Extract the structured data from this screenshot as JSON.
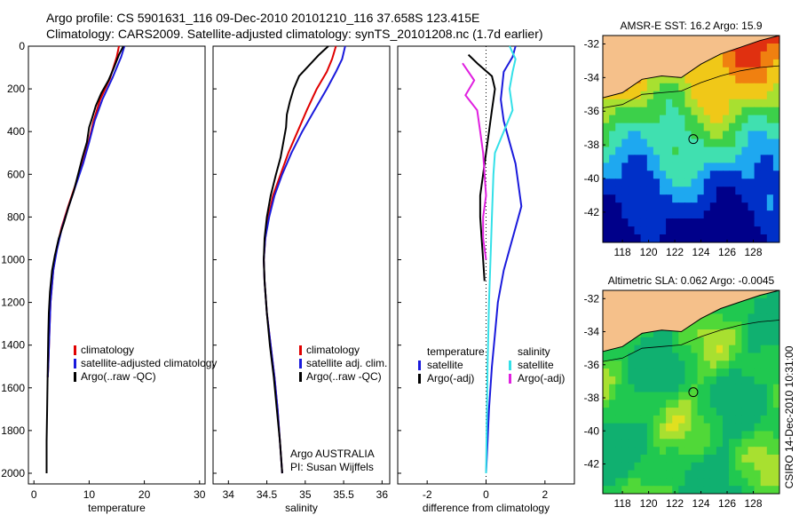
{
  "header": {
    "line1": "Argo profile: CS 5901631_116 09-Dec-2010 20101210_116 37.658S 123.415E",
    "line2": "Climatology: CARS2009. Satellite-adjusted climatology: synTS_20101208.nc (1.7d earlier)"
  },
  "credit": "CSIRO 14-Dec-2010 10:31:00",
  "colors": {
    "climatology": "#e00000",
    "satellite": "#1a1adc",
    "argo": "#000000",
    "cyan": "#33e0e8",
    "magenta": "#e020e0",
    "land": "#f5c08a"
  },
  "chart_data": [
    {
      "type": "line",
      "xlabel": "temperature",
      "ylabel": "",
      "xlim": [
        -1,
        31
      ],
      "ylim": [
        2050,
        0
      ],
      "xticks": [
        0,
        10,
        20,
        30
      ],
      "yticks": [
        0,
        200,
        400,
        600,
        800,
        1000,
        1200,
        1400,
        1600,
        1800,
        2000
      ],
      "legend": [
        "climatology",
        "satellite-adjusted climatology",
        "Argo(..raw -QC)"
      ],
      "series": [
        {
          "name": "climatology",
          "color": "#e00000",
          "points": [
            [
              15.4,
              0
            ],
            [
              15.0,
              50
            ],
            [
              13.8,
              150
            ],
            [
              12.0,
              250
            ],
            [
              10.8,
              350
            ],
            [
              9.9,
              450
            ],
            [
              8.8,
              550
            ],
            [
              7.5,
              650
            ],
            [
              6.2,
              750
            ],
            [
              5.0,
              850
            ],
            [
              4.1,
              950
            ],
            [
              3.5,
              1050
            ],
            [
              3.0,
              1200
            ],
            [
              2.8,
              1350
            ],
            [
              2.6,
              1500
            ],
            [
              2.5,
              1550
            ]
          ]
        },
        {
          "name": "satellite-adjusted climatology",
          "color": "#1a1adc",
          "points": [
            [
              16.4,
              0
            ],
            [
              15.8,
              50
            ],
            [
              14.2,
              150
            ],
            [
              12.4,
              250
            ],
            [
              11.0,
              350
            ],
            [
              10.0,
              450
            ],
            [
              8.9,
              550
            ],
            [
              7.6,
              650
            ],
            [
              6.3,
              750
            ],
            [
              5.1,
              850
            ],
            [
              4.2,
              950
            ],
            [
              3.5,
              1050
            ],
            [
              3.0,
              1200
            ],
            [
              2.8,
              1350
            ],
            [
              2.6,
              1500
            ],
            [
              2.5,
              1550
            ]
          ]
        },
        {
          "name": "Argo(..raw -QC)",
          "color": "#000000",
          "points": [
            [
              16.2,
              0
            ],
            [
              15.4,
              40
            ],
            [
              14.5,
              100
            ],
            [
              13.5,
              160
            ],
            [
              12.2,
              220
            ],
            [
              11.2,
              280
            ],
            [
              10.5,
              340
            ],
            [
              10.0,
              380
            ],
            [
              9.6,
              450
            ],
            [
              8.8,
              520
            ],
            [
              8.0,
              600
            ],
            [
              7.2,
              680
            ],
            [
              6.3,
              750
            ],
            [
              5.4,
              830
            ],
            [
              4.5,
              900
            ],
            [
              3.8,
              980
            ],
            [
              3.3,
              1050
            ],
            [
              2.9,
              1150
            ],
            [
              2.7,
              1250
            ],
            [
              2.6,
              1350
            ],
            [
              2.5,
              1500
            ],
            [
              2.4,
              1700
            ],
            [
              2.3,
              1850
            ],
            [
              2.3,
              2000
            ]
          ]
        }
      ]
    },
    {
      "type": "line",
      "xlabel": "salinity",
      "ylabel": "",
      "xlim": [
        33.8,
        36.1
      ],
      "ylim": [
        2050,
        0
      ],
      "xticks": [
        34,
        34.5,
        35,
        35.5,
        36
      ],
      "legend": [
        "climatology",
        "satellite adj. clim.",
        "Argo(..raw -QC)"
      ],
      "annotation": [
        "Argo AUSTRALIA",
        "PI: Susan Wijffels"
      ],
      "series": [
        {
          "name": "climatology",
          "color": "#e00000",
          "points": [
            [
              35.4,
              0
            ],
            [
              35.35,
              60
            ],
            [
              35.28,
              120
            ],
            [
              35.15,
              200
            ],
            [
              35.02,
              300
            ],
            [
              34.9,
              400
            ],
            [
              34.78,
              500
            ],
            [
              34.68,
              600
            ],
            [
              34.58,
              700
            ],
            [
              34.52,
              800
            ],
            [
              34.48,
              900
            ],
            [
              34.46,
              1000
            ],
            [
              34.47,
              1100
            ],
            [
              34.5,
              1250
            ],
            [
              34.55,
              1400
            ],
            [
              34.6,
              1550
            ],
            [
              34.64,
              1700
            ],
            [
              34.67,
              1850
            ],
            [
              34.7,
              2000
            ]
          ]
        },
        {
          "name": "satellite adj. clim.",
          "color": "#1a1adc",
          "points": [
            [
              35.52,
              0
            ],
            [
              35.48,
              60
            ],
            [
              35.4,
              120
            ],
            [
              35.28,
              200
            ],
            [
              35.12,
              300
            ],
            [
              34.96,
              400
            ],
            [
              34.82,
              500
            ],
            [
              34.7,
              600
            ],
            [
              34.6,
              700
            ],
            [
              34.53,
              800
            ],
            [
              34.48,
              900
            ],
            [
              34.46,
              1000
            ],
            [
              34.47,
              1100
            ],
            [
              34.5,
              1250
            ],
            [
              34.55,
              1400
            ],
            [
              34.6,
              1550
            ],
            [
              34.64,
              1700
            ],
            [
              34.67,
              1850
            ],
            [
              34.7,
              2000
            ]
          ]
        },
        {
          "name": "Argo(..raw -QC)",
          "color": "#000000",
          "points": [
            [
              35.3,
              0
            ],
            [
              35.18,
              40
            ],
            [
              35.05,
              90
            ],
            [
              34.92,
              140
            ],
            [
              34.85,
              200
            ],
            [
              34.8,
              260
            ],
            [
              34.76,
              320
            ],
            [
              34.75,
              380
            ],
            [
              34.72,
              440
            ],
            [
              34.68,
              520
            ],
            [
              34.62,
              600
            ],
            [
              34.55,
              700
            ],
            [
              34.5,
              800
            ],
            [
              34.47,
              900
            ],
            [
              34.46,
              1000
            ],
            [
              34.47,
              1100
            ],
            [
              34.5,
              1250
            ],
            [
              34.54,
              1400
            ],
            [
              34.59,
              1550
            ],
            [
              34.63,
              1700
            ],
            [
              34.67,
              1850
            ],
            [
              34.7,
              2000
            ]
          ]
        }
      ]
    },
    {
      "type": "line",
      "xlabel": "difference from climatology",
      "ylabel": "",
      "xlim": [
        -3,
        3
      ],
      "ylim": [
        2050,
        0
      ],
      "xticks": [
        -2,
        0,
        2
      ],
      "legend_titles": [
        "temperature",
        "salinity"
      ],
      "legend": [
        "satellite",
        "Argo(-adj)",
        "satellite",
        "Argo(-adj)"
      ],
      "series": [
        {
          "name": "temperature satellite",
          "color": "#1a1adc",
          "points": [
            [
              1.0,
              0
            ],
            [
              0.9,
              50
            ],
            [
              0.6,
              120
            ],
            [
              0.5,
              250
            ],
            [
              0.6,
              350
            ],
            [
              0.8,
              450
            ],
            [
              1.0,
              550
            ],
            [
              1.1,
              650
            ],
            [
              1.2,
              750
            ],
            [
              1.0,
              850
            ],
            [
              0.8,
              950
            ],
            [
              0.6,
              1050
            ],
            [
              0.4,
              1200
            ],
            [
              0.3,
              1350
            ],
            [
              0.2,
              1500
            ],
            [
              0.1,
              1700
            ],
            [
              0.05,
              1850
            ],
            [
              0.0,
              2000
            ]
          ]
        },
        {
          "name": "temperature Argo(-adj)",
          "color": "#000000",
          "points": [
            [
              -0.6,
              40
            ],
            [
              -0.3,
              80
            ],
            [
              0.2,
              140
            ],
            [
              0.3,
              200
            ],
            [
              0.2,
              300
            ],
            [
              0.1,
              400
            ],
            [
              0.0,
              500
            ],
            [
              -0.1,
              600
            ],
            [
              -0.2,
              700
            ],
            [
              -0.2,
              800
            ],
            [
              -0.15,
              900
            ],
            [
              -0.1,
              1000
            ],
            [
              -0.05,
              1100
            ]
          ]
        },
        {
          "name": "salinity satellite",
          "color": "#33e0e8",
          "points": [
            [
              0.8,
              0
            ],
            [
              1.0,
              60
            ],
            [
              0.9,
              120
            ],
            [
              0.8,
              200
            ],
            [
              0.9,
              300
            ],
            [
              0.6,
              400
            ],
            [
              0.3,
              500
            ],
            [
              0.25,
              600
            ],
            [
              0.2,
              800
            ],
            [
              0.15,
              1000
            ],
            [
              0.1,
              1200
            ],
            [
              0.05,
              1500
            ],
            [
              0.0,
              2000
            ]
          ]
        },
        {
          "name": "salinity Argo(-adj)",
          "color": "#e020e0",
          "points": [
            [
              -0.8,
              80
            ],
            [
              -0.4,
              160
            ],
            [
              -0.7,
              230
            ],
            [
              -0.3,
              300
            ],
            [
              -0.2,
              400
            ],
            [
              -0.1,
              500
            ],
            [
              -0.05,
              600
            ],
            [
              0.0,
              700
            ],
            [
              -0.1,
              800
            ],
            [
              -0.1,
              900
            ],
            [
              0.0,
              1000
            ]
          ]
        }
      ]
    },
    {
      "type": "heatmap",
      "title": "AMSR-E SST: 16.2  Argo: 15.9",
      "xlim": [
        116.5,
        130
      ],
      "ylim": [
        -43.8,
        -31.5
      ],
      "xticks": [
        118,
        120,
        122,
        124,
        126,
        128
      ],
      "yticks": [
        -32,
        -34,
        -36,
        -38,
        -40,
        -42
      ],
      "profile_location": [
        123.415,
        -37.658
      ]
    },
    {
      "type": "heatmap",
      "title": "Altimetric SLA: 0.062  Argo: -0.0045",
      "xlim": [
        116.5,
        130
      ],
      "ylim": [
        -43.8,
        -31.5
      ],
      "xticks": [
        118,
        120,
        122,
        124,
        126,
        128
      ],
      "yticks": [
        -32,
        -34,
        -36,
        -38,
        -40,
        -42
      ],
      "profile_location": [
        123.415,
        -37.658
      ]
    }
  ]
}
